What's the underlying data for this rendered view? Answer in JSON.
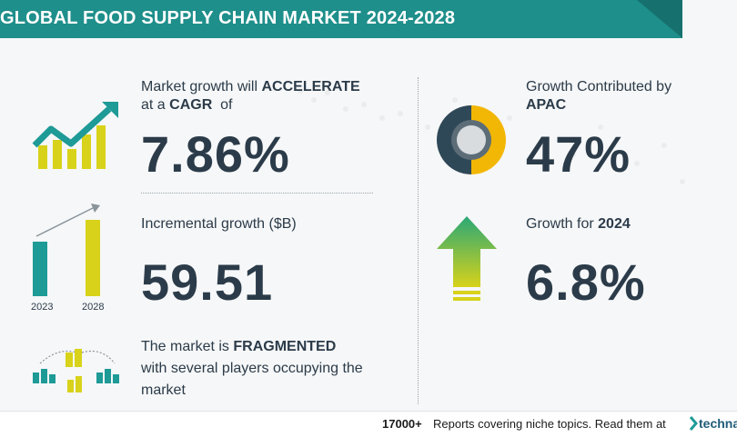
{
  "header": {
    "title": "GLOBAL FOOD SUPPLY CHAIN MARKET 2024-2028"
  },
  "cagr": {
    "line1_prefix": "Market growth will ",
    "line1_bold": "ACCELERATE",
    "line2_prefix": "at a ",
    "line2_bold": "CAGR",
    "line2_suffix": "  of",
    "value": "7.86%"
  },
  "incremental": {
    "label": "Incremental growth ($B)",
    "value": "59.51",
    "year_start": "2023",
    "year_end": "2028"
  },
  "market": {
    "line1_prefix": "The market is ",
    "line1_bold": "FRAGMENTED",
    "line2": "with several players occupying the",
    "line3": "market"
  },
  "region": {
    "label": "Growth Contributed by",
    "name": "APAC",
    "value": "47%",
    "donut_share": 0.47
  },
  "growth_year": {
    "label": "Growth for ",
    "year": "2024",
    "value": "6.8%"
  },
  "footer": {
    "count": "17000+",
    "text": "Reports covering niche topics. Read them at",
    "brand": "technav"
  },
  "colors": {
    "header": "#1e8f8b",
    "teal": "#1e9a97",
    "yellow": "#d8d21a",
    "navy": "#2f4858",
    "gold": "#f2b705",
    "green": "#3aa86b"
  }
}
